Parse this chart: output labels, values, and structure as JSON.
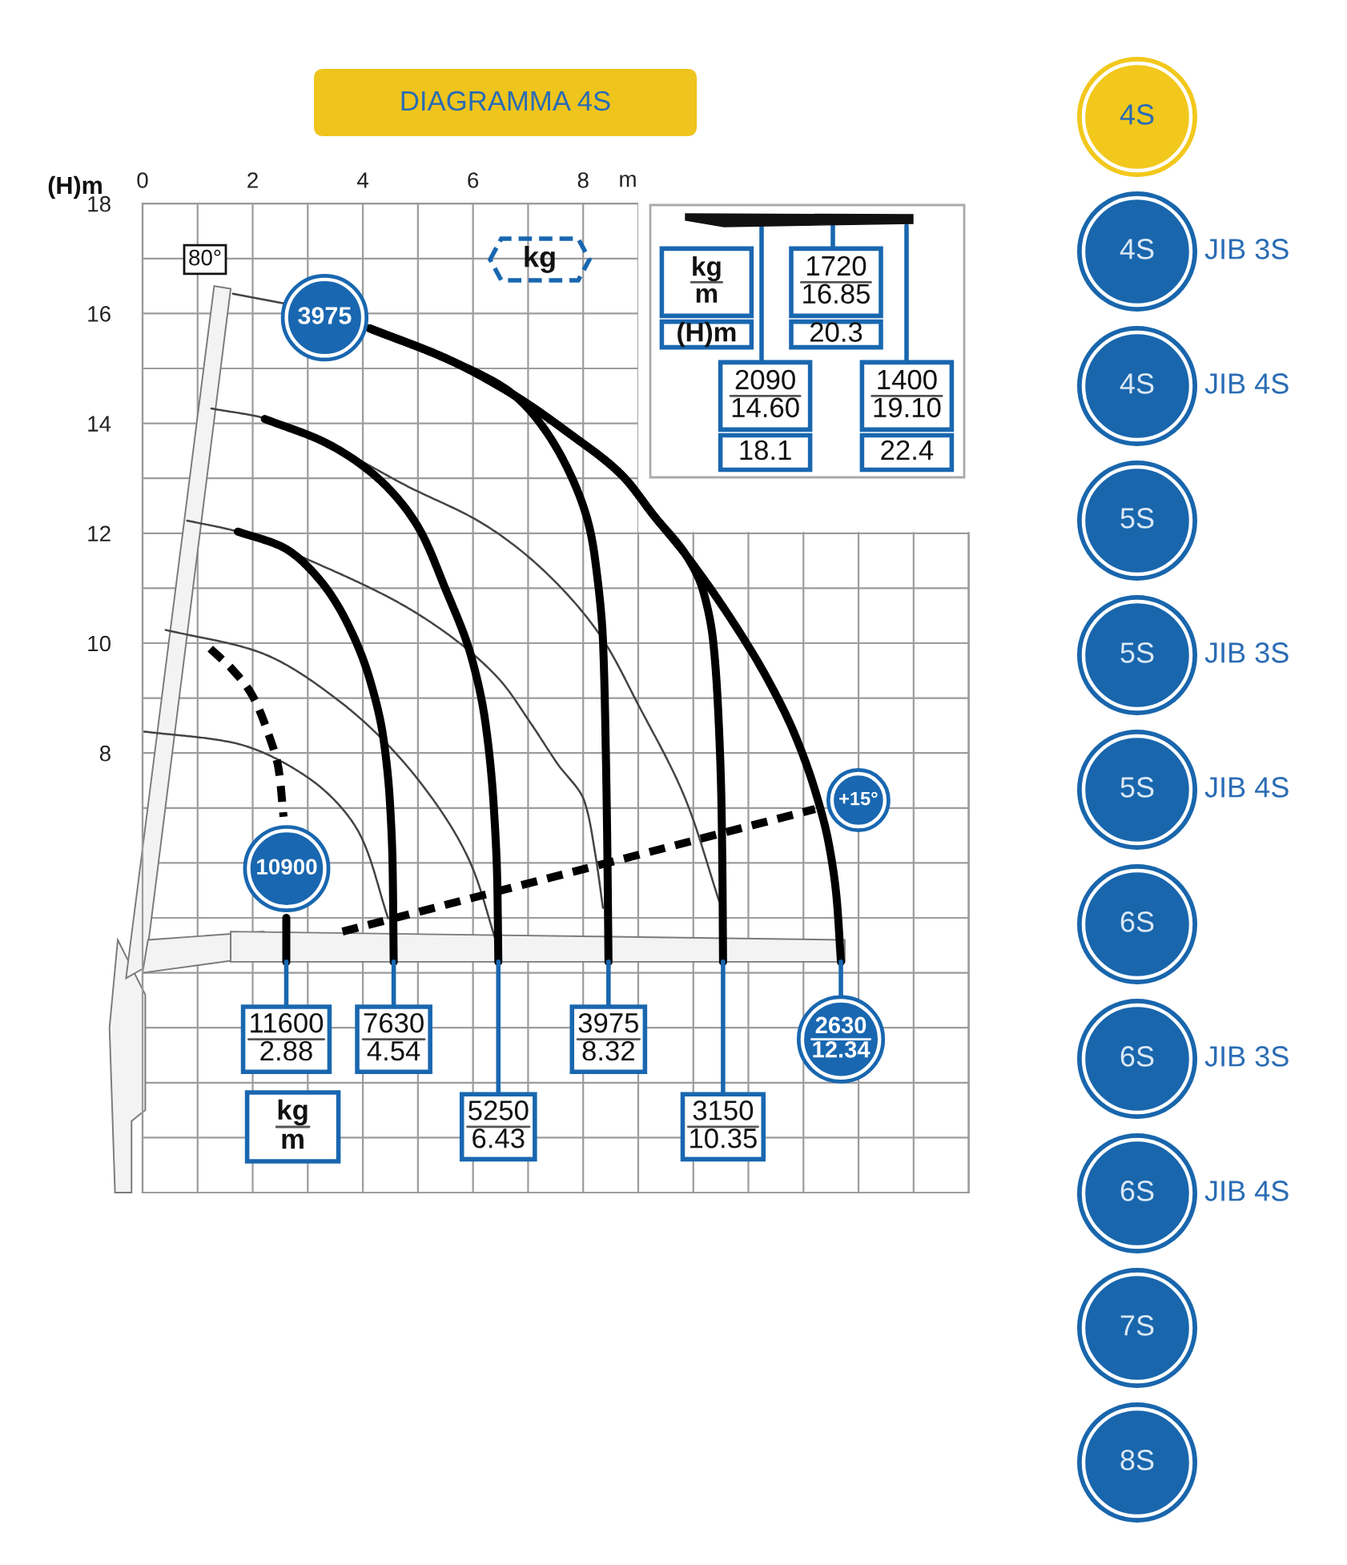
{
  "chart_data": {
    "type": "line",
    "title": "DIAGRAMMA 4S",
    "xlabel": "m",
    "ylabel": "(H)m",
    "xlim": [
      0,
      15
    ],
    "ylim": [
      0,
      18
    ],
    "xticks": [
      0,
      {
        "value": 1,
        "label": null
      },
      2,
      {
        "value": 3,
        "label": null
      },
      4,
      {
        "value": 5,
        "label": null
      },
      6,
      {
        "value": 7,
        "label": null
      },
      8,
      {
        "value": 9,
        "label": null
      },
      {
        "value": 10,
        "label": null
      },
      {
        "value": 11,
        "label": null
      },
      {
        "value": 12,
        "label": null
      },
      {
        "value": 13,
        "label": null
      },
      {
        "value": 14,
        "label": null
      },
      {
        "value": 15,
        "label": null
      }
    ],
    "yticks": [
      {
        "value": 0,
        "label": null
      },
      {
        "value": 1,
        "label": null
      },
      {
        "value": 2,
        "label": null
      },
      {
        "value": 3,
        "label": null
      },
      {
        "value": 4,
        "label": null
      },
      {
        "value": 5,
        "label": null
      },
      {
        "value": 6,
        "label": null
      },
      {
        "value": 7,
        "label": null
      },
      8,
      {
        "value": 9,
        "label": null
      },
      10,
      {
        "value": 11,
        "label": null
      },
      12,
      {
        "value": 13,
        "label": null
      },
      14,
      {
        "value": 15,
        "label": null
      },
      16,
      {
        "value": 17,
        "label": null
      },
      18
    ],
    "grid": true,
    "series": [
      {
        "color": "#444444",
        "x": [
          1.64,
          2.58
        ],
        "values": [
          16.36,
          16.18
        ]
      },
      {
        "color": "#444444",
        "x": [
          1.25,
          2.2,
          3.34,
          4.8,
          6.17,
          7.2,
          8.31,
          9.0,
          9.87,
          10.47
        ],
        "values": [
          14.27,
          14.1,
          13.64,
          12.86,
          12.18,
          11.4,
          10.14,
          8.88,
          7.13,
          5.3
        ]
      },
      {
        "color": "#444444",
        "x": [
          0.81,
          1.73,
          3.05,
          5.0,
          6.46,
          7.05,
          7.53,
          8.02,
          8.22,
          8.36
        ],
        "values": [
          12.23,
          12.03,
          11.5,
          10.53,
          9.36,
          8.54,
          7.81,
          7.13,
          6.16,
          5.18
        ]
      },
      {
        "color": "#444444",
        "x": [
          0.42,
          2.08,
          3.54,
          5.0,
          5.97,
          6.41
        ],
        "values": [
          10.24,
          9.85,
          8.97,
          7.52,
          5.96,
          4.6
        ]
      },
      {
        "color": "#444444",
        "x": [
          0.03,
          1.59,
          3.05,
          3.93,
          4.46
        ],
        "values": [
          8.39,
          8.2,
          7.52,
          6.55,
          4.99
        ]
      },
      {
        "color": "#000000",
        "line_style": "dashed",
        "x": [
          1.23,
          1.64,
          1.98,
          2.27,
          2.47,
          2.56
        ],
        "values": [
          9.9,
          9.51,
          9.07,
          8.39,
          7.71,
          6.84
        ]
      },
      {
        "color": "#000000",
        "x": [
          2.61,
          2.61
        ],
        "values": [
          5.0,
          4.2
        ]
      },
      {
        "color": "#000000",
        "x": [
          1.73,
          2.56,
          3.25,
          3.73,
          4.12,
          4.37,
          4.49,
          4.54,
          4.56
        ],
        "values": [
          12.03,
          11.74,
          11.11,
          10.34,
          9.36,
          8.29,
          7.13,
          5.96,
          4.2
        ]
      },
      {
        "color": "#000000",
        "x": [
          2.22,
          3.34,
          4.32,
          5.0,
          5.49,
          5.97,
          6.22,
          6.37,
          6.44,
          6.46
        ],
        "values": [
          14.08,
          13.64,
          12.96,
          12.12,
          11.01,
          9.75,
          8.59,
          7.13,
          5.67,
          4.2
        ]
      },
      {
        "color": "#000000",
        "x": [
          4.12,
          5.58,
          6.75,
          7.63,
          8.12,
          8.22,
          8.36,
          8.41,
          8.44,
          8.46
        ],
        "values": [
          15.73,
          15.15,
          14.51,
          13.35,
          12.08,
          11.5,
          10.04,
          8.1,
          6.16,
          4.2
        ]
      },
      {
        "color": "#000000",
        "x": [
          4.12,
          5.58,
          6.75,
          7.73,
          8.7,
          9.3,
          9.87,
          10.16,
          10.36,
          10.46,
          10.51,
          10.53,
          10.54
        ],
        "values": [
          15.73,
          15.15,
          14.51,
          13.83,
          13.06,
          12.3,
          11.6,
          11.01,
          10.04,
          8.59,
          7.13,
          5.67,
          4.2
        ]
      },
      {
        "color": "#000000",
        "x": [
          4.12,
          5.58,
          6.75,
          7.73,
          8.7,
          9.3,
          9.87,
          10.75,
          11.34,
          11.82,
          12.21,
          12.46,
          12.6,
          12.68
        ],
        "values": [
          15.73,
          15.15,
          14.51,
          13.83,
          13.06,
          12.3,
          11.6,
          10.34,
          9.36,
          8.39,
          7.32,
          6.35,
          5.38,
          4.2
        ]
      },
      {
        "name": "+15°",
        "color": "#000000",
        "line_style": "dashed",
        "x": [
          3.63,
          12.21
        ],
        "values": [
          4.75,
          6.98
        ]
      }
    ],
    "annotations": [
      "80°",
      "kg",
      "kg\nm",
      "3975",
      "10900",
      "kg\nm",
      "(H)m",
      "1720\n16.85",
      "20.3",
      "2090\n14.60",
      "18.1",
      "1400\n19.10",
      "22.4",
      "4S",
      "4S",
      "JIB 3S",
      "4S",
      "JIB 4S",
      "5S",
      "5S",
      "JIB 3S",
      "5S",
      "JIB 4S",
      "6S",
      "6S",
      "JIB 3S",
      "6S",
      "JIB 4S",
      "7S",
      "8S",
      {
        "text": "11600\n2.88",
        "x": 2.61,
        "y": 4.2
      },
      {
        "text": "7630\n4.54",
        "x": 4.56,
        "y": 4.2
      },
      {
        "text": "5250\n6.43",
        "x": 6.46,
        "y": 4.2
      },
      {
        "text": "3975\n8.32",
        "x": 8.46,
        "y": 4.2
      },
      {
        "text": "3150\n10.35",
        "x": 10.54,
        "y": 4.2
      },
      {
        "text": "2630\n12.34",
        "x": 12.68,
        "y": 4.2
      }
    ]
  }
}
